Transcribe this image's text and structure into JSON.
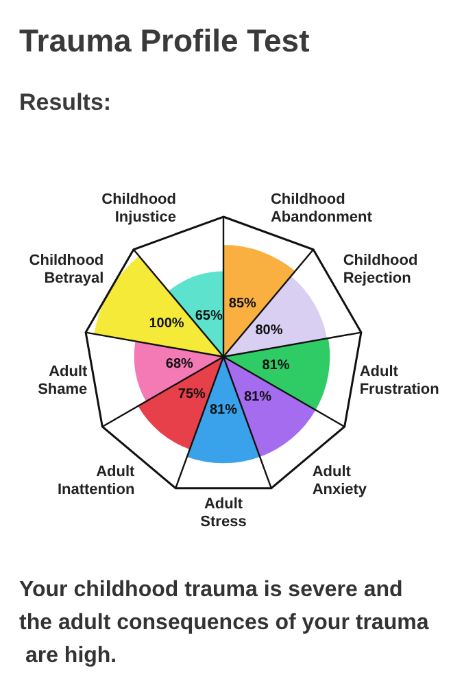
{
  "chart_data": {
    "type": "other",
    "title": "Trauma Profile Test",
    "subtitle": "Results:",
    "categories": [
      "Childhood Abandonment",
      "Childhood Rejection",
      "Adult Frustration",
      "Adult Anxiety",
      "Adult Stress",
      "Adult Inattention",
      "Adult Shame",
      "Childhood Betrayal",
      "Childhood Injustice"
    ],
    "values": [
      85,
      80,
      81,
      81,
      81,
      75,
      68,
      100,
      65
    ],
    "value_labels": [
      "85%",
      "80%",
      "81%",
      "81%",
      "81%",
      "75%",
      "68%",
      "100%",
      "65%"
    ],
    "colors": [
      "#f9b040",
      "#d8cff2",
      "#2fcc66",
      "#a66cf0",
      "#3aa2ea",
      "#e8404a",
      "#f47ab6",
      "#f5ea38",
      "#5de3cd"
    ],
    "annotations": [
      "Your childhood trauma is severe and the adult consequences of your trauma are high."
    ]
  }
}
